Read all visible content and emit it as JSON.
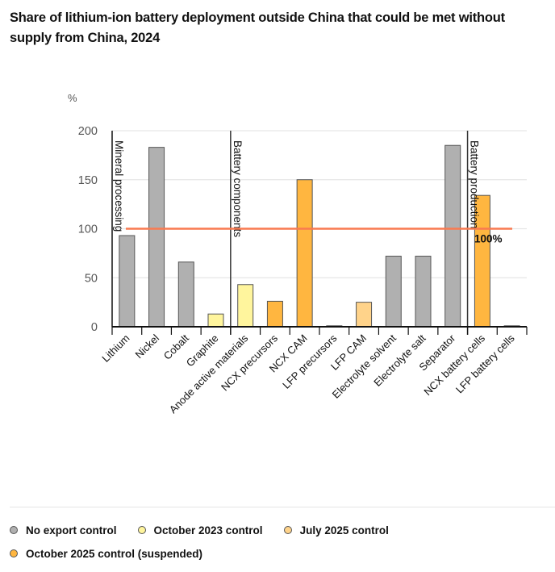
{
  "title": "Share of lithium-ion battery deployment outside China that could be met without supply from China, 2024",
  "colors": {
    "no_export_control": "#b0b0b0",
    "october_2023_control": "#fff59d",
    "july_2025_control": "#ffd38a",
    "october_2025_control": "#ffb640",
    "reference_line": "#f97a50",
    "grid": "#e6e6e6",
    "bar_stroke": "#555555"
  },
  "chart_data": {
    "type": "bar",
    "title": "Share of lithium-ion battery deployment outside China that could be met without supply from China, 2024",
    "xlabel": "",
    "ylabel": "%",
    "ylim": [
      0,
      200
    ],
    "yticks": [
      0,
      50,
      100,
      150,
      200
    ],
    "grid": true,
    "categories": [
      "Lithium",
      "Nickel",
      "Cobalt",
      "Graphite",
      "Anode active materials",
      "NCX precursors",
      "NCX CAM",
      "LFP precursors",
      "LFP CAM",
      "Electrolyte solvent",
      "Electrolyte salt",
      "Separator",
      "NCX battery cells",
      "LFP battery cells"
    ],
    "values": [
      93,
      183,
      66,
      13,
      43,
      26,
      150,
      1,
      25,
      72,
      72,
      185,
      134,
      1
    ],
    "series_of_category": [
      "No export control",
      "No export control",
      "No export control",
      "October 2023 control",
      "October 2023 control",
      "October 2025 control (suspended)",
      "October 2025 control (suspended)",
      "October 2025 control (suspended)",
      "July 2025 control",
      "No export control",
      "No export control",
      "No export control",
      "October 2025 control (suspended)",
      "October 2025 control (suspended)"
    ],
    "sections": [
      {
        "label": "Mineral processing",
        "start_index": 0
      },
      {
        "label": "Battery components",
        "start_index": 4
      },
      {
        "label": "Battery production",
        "start_index": 12
      }
    ],
    "reference_line": {
      "value": 100,
      "label": "100%"
    },
    "legend": [
      {
        "label": "No export control",
        "color_key": "no_export_control"
      },
      {
        "label": "October 2023 control",
        "color_key": "october_2023_control"
      },
      {
        "label": "July 2025 control",
        "color_key": "july_2025_control"
      },
      {
        "label": "October 2025 control (suspended)",
        "color_key": "october_2025_control"
      }
    ],
    "legend_position": "bottom"
  }
}
